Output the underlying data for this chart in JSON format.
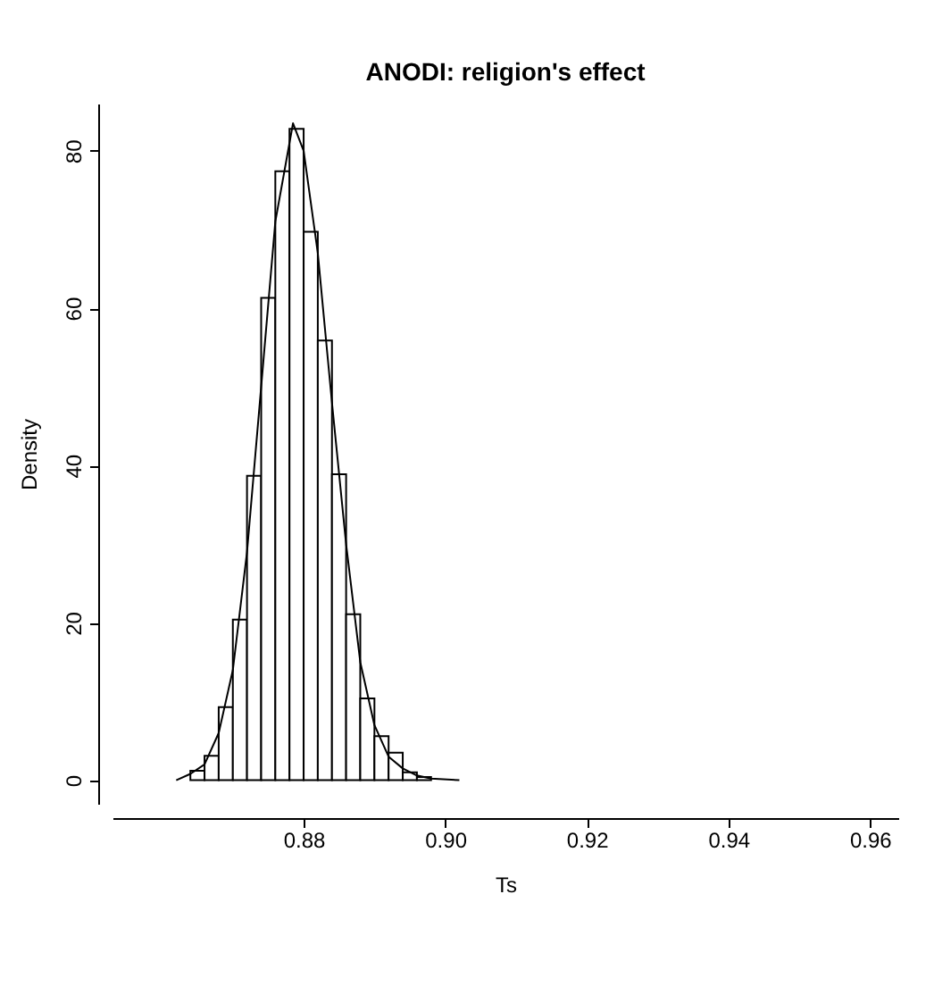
{
  "chart_data": {
    "type": "histogram",
    "title": "ANODI: religion's effect",
    "xlabel": "Ts",
    "ylabel": "Density",
    "bins": [
      0.864,
      0.866,
      0.868,
      0.87,
      0.872,
      0.874,
      0.876,
      0.878,
      0.88,
      0.882,
      0.884,
      0.886,
      0.888,
      0.89,
      0.892,
      0.894,
      0.896,
      0.898
    ],
    "values": [
      1.2,
      3.1,
      9.3,
      20.4,
      38.7,
      61.3,
      77.4,
      82.8,
      69.7,
      55.9,
      38.9,
      21.1,
      10.4,
      5.6,
      3.5,
      1.0,
      0.4
    ],
    "color": "#ffffff",
    "series": [
      {
        "type": "line",
        "color": "#000000",
        "x": [
          0.862,
          0.864,
          0.866,
          0.868,
          0.87,
          0.872,
          0.874,
          0.876,
          0.8785,
          0.88,
          0.882,
          0.884,
          0.886,
          0.888,
          0.89,
          0.892,
          0.894,
          0.896,
          0.898,
          0.902
        ],
        "values": [
          0,
          0.8,
          2,
          6,
          14,
          29,
          50,
          71,
          83.5,
          80,
          67,
          48,
          30,
          15,
          7,
          3,
          1.5,
          0.6,
          0.2,
          0
        ]
      }
    ],
    "xlim": [
      0.853,
      0.964
    ],
    "xticks": [
      {
        "value": 0.88,
        "label": "0.88"
      },
      {
        "value": 0.9,
        "label": "0.90"
      },
      {
        "value": 0.92,
        "label": "0.92"
      },
      {
        "value": 0.94,
        "label": "0.94"
      },
      {
        "value": 0.96,
        "label": "0.96"
      }
    ],
    "ylim": [
      -3,
      86
    ],
    "yticks": [
      0,
      20,
      40,
      60,
      80
    ],
    "grid": false
  }
}
